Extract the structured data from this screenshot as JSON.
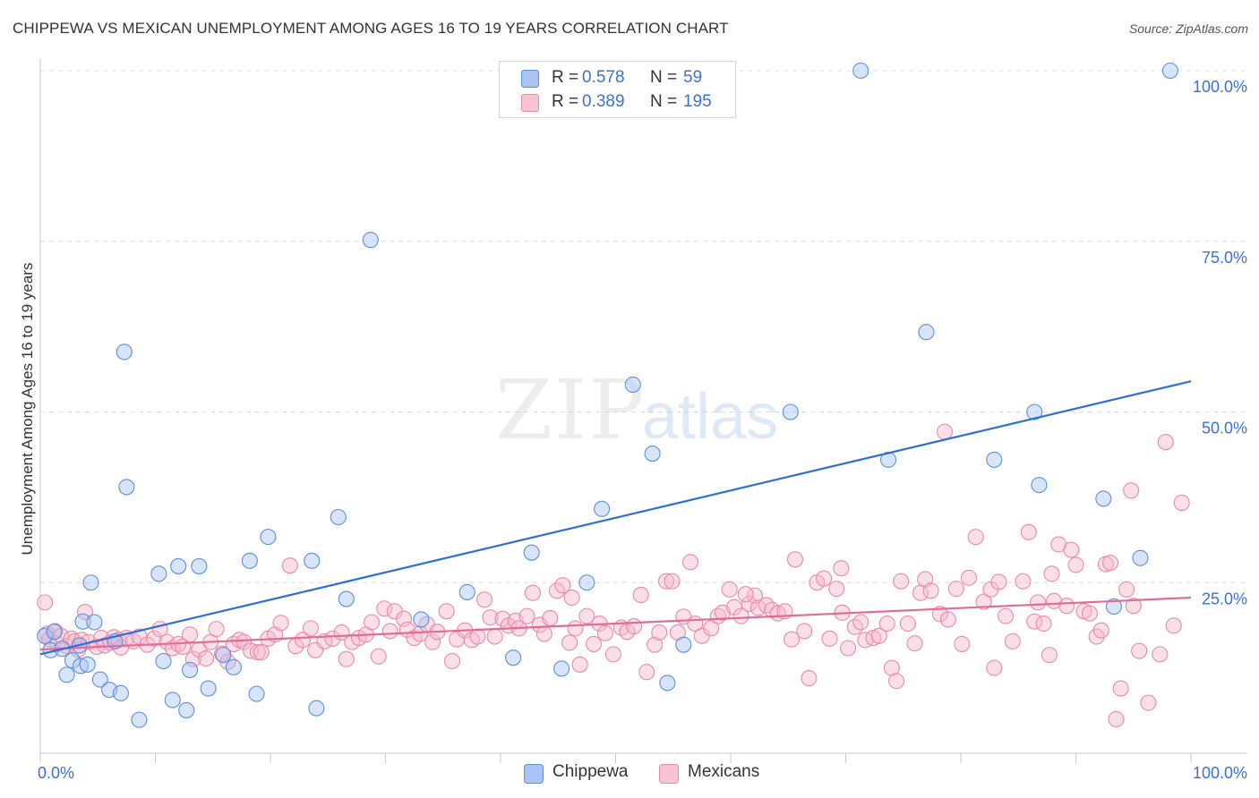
{
  "title": "CHIPPEWA VS MEXICAN UNEMPLOYMENT AMONG AGES 16 TO 19 YEARS CORRELATION CHART",
  "source": "Source: ZipAtlas.com",
  "watermark": {
    "zip": "ZIP",
    "atlas": "atlas"
  },
  "legend": {
    "rows": [
      {
        "r_label": "R =",
        "r_value": "0.578",
        "n_label": "N =",
        "n_value": "59"
      },
      {
        "r_label": "R =",
        "r_value": "0.389",
        "n_label": "N =",
        "n_value": "195"
      }
    ]
  },
  "bottom_legend": {
    "chippewa": "Chippewa",
    "mexicans": "Mexicans"
  },
  "colors": {
    "chippewa_fill": "#a9c4f2",
    "chippewa_stroke": "#5d8fdb",
    "chippewa_line": "#2e6fd1",
    "mexicans_fill": "#f7b8cb",
    "mexicans_stroke": "#e98aa9",
    "mexicans_line": "#e36b97",
    "tick_label": "#3a72d6"
  },
  "chart_data": {
    "type": "scatter",
    "title": "CHIPPEWA VS MEXICAN UNEMPLOYMENT AMONG AGES 16 TO 19 YEARS CORRELATION CHART",
    "xlabel": "",
    "ylabel": "Unemployment Among Ages 16 to 19 years",
    "xlim": [
      0,
      100
    ],
    "ylim": [
      0,
      100
    ],
    "x_tick_labels": [
      "0.0%",
      "100.0%"
    ],
    "y_tick_labels": [
      {
        "value": 25,
        "label": "25.0%"
      },
      {
        "value": 50,
        "label": "50.0%"
      },
      {
        "value": 75,
        "label": "75.0%"
      },
      {
        "value": 100,
        "label": "100.0%"
      }
    ],
    "grid": "horizontal dashed",
    "series": [
      {
        "name": "Chippewa",
        "r": 0.578,
        "n": 59,
        "trend": {
          "x": [
            0,
            100
          ],
          "y": [
            14.5,
            54.5
          ]
        },
        "points": [
          [
            0.4,
            17.2
          ],
          [
            0.9,
            15.1
          ],
          [
            1.2,
            17.8
          ],
          [
            1.9,
            15.3
          ],
          [
            2.3,
            11.5
          ],
          [
            2.8,
            13.6
          ],
          [
            3.4,
            15.8
          ],
          [
            3.5,
            12.8
          ],
          [
            3.7,
            19.3
          ],
          [
            4.1,
            13.0
          ],
          [
            4.4,
            25.0
          ],
          [
            4.7,
            19.2
          ],
          [
            5.2,
            10.8
          ],
          [
            6.0,
            9.3
          ],
          [
            6.5,
            16.4
          ],
          [
            7.0,
            8.8
          ],
          [
            7.3,
            58.8
          ],
          [
            7.5,
            39.0
          ],
          [
            8.6,
            4.9
          ],
          [
            10.3,
            26.3
          ],
          [
            10.7,
            13.5
          ],
          [
            11.5,
            7.8
          ],
          [
            12.0,
            27.4
          ],
          [
            12.7,
            6.3
          ],
          [
            13.0,
            12.2
          ],
          [
            13.8,
            27.4
          ],
          [
            14.6,
            9.5
          ],
          [
            15.9,
            14.4
          ],
          [
            16.8,
            12.6
          ],
          [
            18.2,
            28.2
          ],
          [
            18.8,
            8.7
          ],
          [
            19.8,
            31.7
          ],
          [
            23.6,
            28.2
          ],
          [
            24.0,
            6.6
          ],
          [
            25.9,
            34.6
          ],
          [
            26.6,
            22.6
          ],
          [
            28.7,
            75.2
          ],
          [
            33.1,
            19.6
          ],
          [
            37.1,
            23.6
          ],
          [
            41.1,
            14.0
          ],
          [
            42.7,
            29.4
          ],
          [
            45.3,
            12.4
          ],
          [
            47.5,
            25.0
          ],
          [
            48.8,
            35.8
          ],
          [
            51.5,
            54.0
          ],
          [
            53.2,
            43.9
          ],
          [
            54.5,
            10.3
          ],
          [
            55.9,
            15.9
          ],
          [
            65.2,
            50.0
          ],
          [
            71.3,
            100.0
          ],
          [
            73.7,
            43.0
          ],
          [
            77.0,
            61.7
          ],
          [
            82.9,
            43.0
          ],
          [
            86.4,
            50.0
          ],
          [
            86.8,
            39.3
          ],
          [
            92.4,
            37.3
          ],
          [
            93.3,
            21.5
          ],
          [
            95.6,
            28.6
          ],
          [
            98.2,
            100.0
          ]
        ]
      },
      {
        "name": "Mexicans",
        "r": 0.389,
        "n": 195,
        "trend": {
          "x": [
            0,
            100
          ],
          "y": [
            15.2,
            22.8
          ]
        },
        "points": [
          [
            0.4,
            22.1
          ],
          [
            0.6,
            17.5
          ],
          [
            0.8,
            16.7
          ],
          [
            1.3,
            17.9
          ],
          [
            1.5,
            16.0
          ],
          [
            1.8,
            17.2
          ],
          [
            2.3,
            15.7
          ],
          [
            2.7,
            16.8
          ],
          [
            3.0,
            16.4
          ],
          [
            3.3,
            15.2
          ],
          [
            3.6,
            16.6
          ],
          [
            3.9,
            20.7
          ],
          [
            4.2,
            16.3
          ],
          [
            4.9,
            15.6
          ],
          [
            5.3,
            16.9
          ],
          [
            5.6,
            15.8
          ],
          [
            6.1,
            16.2
          ],
          [
            6.4,
            17.0
          ],
          [
            6.8,
            16.6
          ],
          [
            7.0,
            15.5
          ],
          [
            7.5,
            16.9
          ],
          [
            8.1,
            16.4
          ],
          [
            8.6,
            17.1
          ],
          [
            9.3,
            15.9
          ],
          [
            9.9,
            16.8
          ],
          [
            10.4,
            18.2
          ],
          [
            11.0,
            16.3
          ],
          [
            11.5,
            15.4
          ],
          [
            12.0,
            16.0
          ],
          [
            12.4,
            15.6
          ],
          [
            13.0,
            17.4
          ],
          [
            13.3,
            13.8
          ],
          [
            13.8,
            15.2
          ],
          [
            14.4,
            13.9
          ],
          [
            14.8,
            16.3
          ],
          [
            15.3,
            18.2
          ],
          [
            15.8,
            14.6
          ],
          [
            16.3,
            13.4
          ],
          [
            16.8,
            16.0
          ],
          [
            17.3,
            16.6
          ],
          [
            17.7,
            16.3
          ],
          [
            18.3,
            15.0
          ],
          [
            18.9,
            14.8
          ],
          [
            19.2,
            14.8
          ],
          [
            19.8,
            16.8
          ],
          [
            20.4,
            17.4
          ],
          [
            20.9,
            19.1
          ],
          [
            21.7,
            27.5
          ],
          [
            22.2,
            15.7
          ],
          [
            22.8,
            16.6
          ],
          [
            23.5,
            18.3
          ],
          [
            23.9,
            15.1
          ],
          [
            24.7,
            16.4
          ],
          [
            25.4,
            16.8
          ],
          [
            26.2,
            17.7
          ],
          [
            26.6,
            13.8
          ],
          [
            27.1,
            16.3
          ],
          [
            27.7,
            16.9
          ],
          [
            28.3,
            17.4
          ],
          [
            28.8,
            19.2
          ],
          [
            29.4,
            14.2
          ],
          [
            29.9,
            21.2
          ],
          [
            30.4,
            17.9
          ],
          [
            30.8,
            20.8
          ],
          [
            31.6,
            19.7
          ],
          [
            31.9,
            18.1
          ],
          [
            32.5,
            16.9
          ],
          [
            33.0,
            17.5
          ],
          [
            33.6,
            18.9
          ],
          [
            34.1,
            16.3
          ],
          [
            34.5,
            17.8
          ],
          [
            35.3,
            20.8
          ],
          [
            35.8,
            13.5
          ],
          [
            36.2,
            16.7
          ],
          [
            36.9,
            18.0
          ],
          [
            37.5,
            16.6
          ],
          [
            38.0,
            17.1
          ],
          [
            38.6,
            22.5
          ],
          [
            39.1,
            19.9
          ],
          [
            39.5,
            17.1
          ],
          [
            40.2,
            19.7
          ],
          [
            40.7,
            18.7
          ],
          [
            41.3,
            19.4
          ],
          [
            41.6,
            18.3
          ],
          [
            42.3,
            20.1
          ],
          [
            42.8,
            23.5
          ],
          [
            43.4,
            18.8
          ],
          [
            43.8,
            17.5
          ],
          [
            44.3,
            19.8
          ],
          [
            44.9,
            23.8
          ],
          [
            45.4,
            24.6
          ],
          [
            46.0,
            16.2
          ],
          [
            46.5,
            18.3
          ],
          [
            46.9,
            13.0
          ],
          [
            47.5,
            20.1
          ],
          [
            48.1,
            16.0
          ],
          [
            48.6,
            19.0
          ],
          [
            49.1,
            17.6
          ],
          [
            49.8,
            14.5
          ],
          [
            50.5,
            18.4
          ],
          [
            51.0,
            17.8
          ],
          [
            51.6,
            18.6
          ],
          [
            52.2,
            23.2
          ],
          [
            52.7,
            11.9
          ],
          [
            53.4,
            15.9
          ],
          [
            53.8,
            17.7
          ],
          [
            54.4,
            25.2
          ],
          [
            54.9,
            25.2
          ],
          [
            55.4,
            17.7
          ],
          [
            55.9,
            20.0
          ],
          [
            56.5,
            28.0
          ],
          [
            56.9,
            19.0
          ],
          [
            57.5,
            17.2
          ],
          [
            58.3,
            18.3
          ],
          [
            58.9,
            20.1
          ],
          [
            59.3,
            20.6
          ],
          [
            59.9,
            24.0
          ],
          [
            60.3,
            21.4
          ],
          [
            60.9,
            20.1
          ],
          [
            61.6,
            21.9
          ],
          [
            62.1,
            23.1
          ],
          [
            62.4,
            21.3
          ],
          [
            63.1,
            21.7
          ],
          [
            63.6,
            21.0
          ],
          [
            64.1,
            20.5
          ],
          [
            64.7,
            20.8
          ],
          [
            65.3,
            16.7
          ],
          [
            65.6,
            28.4
          ],
          [
            66.4,
            17.9
          ],
          [
            66.8,
            11.0
          ],
          [
            67.5,
            25.0
          ],
          [
            68.1,
            25.6
          ],
          [
            68.6,
            16.8
          ],
          [
            69.2,
            24.1
          ],
          [
            69.7,
            20.6
          ],
          [
            70.2,
            15.4
          ],
          [
            70.8,
            18.5
          ],
          [
            71.3,
            19.2
          ],
          [
            71.7,
            16.6
          ],
          [
            72.4,
            16.9
          ],
          [
            72.9,
            17.2
          ],
          [
            73.6,
            19.0
          ],
          [
            74.0,
            12.5
          ],
          [
            74.4,
            10.6
          ],
          [
            74.8,
            25.2
          ],
          [
            75.4,
            19.0
          ],
          [
            76.0,
            16.1
          ],
          [
            76.5,
            23.5
          ],
          [
            76.9,
            25.5
          ],
          [
            77.4,
            23.8
          ],
          [
            78.2,
            20.4
          ],
          [
            78.6,
            47.1
          ],
          [
            78.9,
            19.6
          ],
          [
            79.6,
            24.1
          ],
          [
            80.1,
            16.0
          ],
          [
            80.7,
            25.7
          ],
          [
            81.3,
            31.7
          ],
          [
            82.0,
            22.2
          ],
          [
            82.6,
            24.0
          ],
          [
            82.9,
            12.5
          ],
          [
            83.3,
            25.1
          ],
          [
            83.9,
            20.1
          ],
          [
            84.5,
            16.4
          ],
          [
            85.4,
            25.2
          ],
          [
            85.9,
            32.4
          ],
          [
            86.4,
            19.3
          ],
          [
            86.7,
            22.1
          ],
          [
            87.2,
            19.0
          ],
          [
            87.7,
            14.4
          ],
          [
            88.1,
            22.3
          ],
          [
            88.5,
            30.6
          ],
          [
            89.2,
            21.6
          ],
          [
            89.6,
            29.8
          ],
          [
            90.0,
            27.6
          ],
          [
            90.7,
            20.8
          ],
          [
            91.2,
            20.5
          ],
          [
            91.8,
            17.1
          ],
          [
            92.2,
            18.0
          ],
          [
            92.6,
            27.7
          ],
          [
            93.0,
            27.9
          ],
          [
            93.5,
            5.0
          ],
          [
            93.9,
            9.5
          ],
          [
            94.4,
            24.0
          ],
          [
            94.8,
            38.5
          ],
          [
            95.0,
            21.6
          ],
          [
            95.5,
            15.0
          ],
          [
            96.3,
            7.4
          ],
          [
            97.3,
            14.5
          ],
          [
            97.8,
            45.6
          ],
          [
            98.5,
            18.7
          ],
          [
            99.2,
            36.7
          ],
          [
            87.9,
            26.3
          ],
          [
            69.6,
            27.1
          ],
          [
            61.3,
            23.3
          ],
          [
            46.2,
            22.8
          ]
        ]
      }
    ]
  }
}
